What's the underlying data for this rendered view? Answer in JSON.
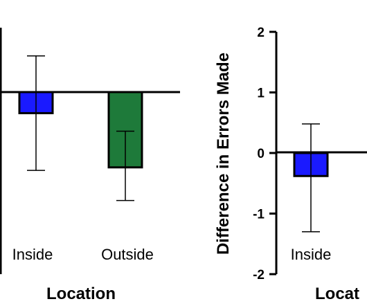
{
  "chart_data": [
    {
      "type": "bar",
      "categories": [
        "Inside",
        "Outside"
      ],
      "values": [
        -0.35,
        -1.25
      ],
      "error_low": [
        -1.3,
        -1.8
      ],
      "error_high": [
        0.6,
        -0.65
      ],
      "colors": [
        "#1a1aff",
        "#1e7a3a"
      ],
      "xlabel": "Location",
      "ylabel": "",
      "ylim": [
        -2,
        2
      ],
      "grid": false,
      "legend": "none"
    },
    {
      "type": "bar",
      "categories": [
        "Inside"
      ],
      "values": [
        -0.38
      ],
      "error_low": [
        -1.3
      ],
      "error_high": [
        0.48
      ],
      "colors": [
        "#1a1aff"
      ],
      "xlabel": "Locat",
      "ylabel": "Difference in Errors Made",
      "ylim": [
        -2,
        2
      ],
      "yticks": [
        "2",
        "1",
        "0",
        "-1",
        "-2"
      ],
      "grid": false,
      "legend": "none"
    }
  ]
}
